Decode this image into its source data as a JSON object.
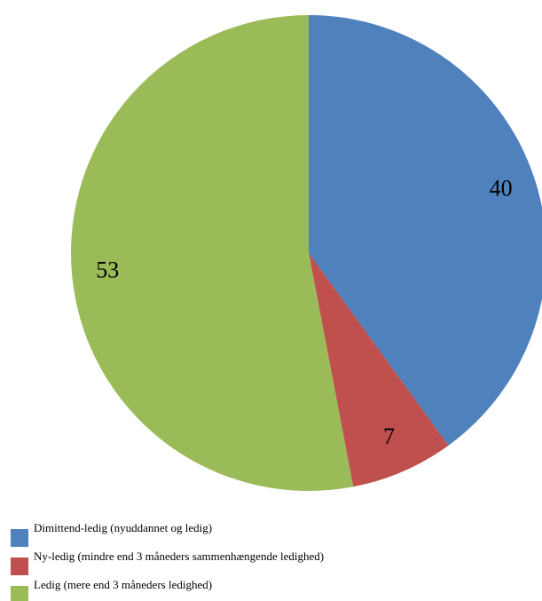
{
  "chart_data": {
    "type": "pie",
    "categories": [
      "Dimittend-ledig (nyuddannet og ledig)",
      "Ny-ledig (mindre end 3 måneders sammenhængende ledighed)",
      "Ledig (mere end 3 måneders ledighed)"
    ],
    "values": [
      40,
      7,
      53
    ],
    "colors": [
      "#4f81bd",
      "#c0504d",
      "#9bbb59"
    ],
    "legend": "bottom"
  }
}
